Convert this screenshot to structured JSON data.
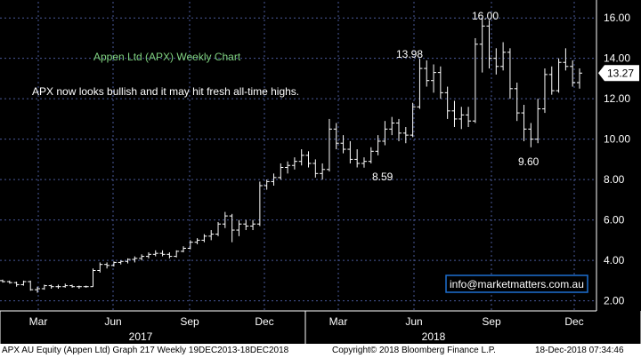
{
  "chart_data": {
    "type": "bar",
    "subtype": "ohlc-weekly",
    "title": "Appen Ltd (APX) Weekly Chart",
    "subtitle": "APX now looks bullish and it may hit fresh all-time highs.",
    "email": "info@marketmatters.com.au",
    "last_price": "13.27",
    "ylim": [
      1.5,
      16.8
    ],
    "y_ticks": [
      "2.00",
      "4.00",
      "6.00",
      "8.00",
      "10.00",
      "12.00",
      "14.00",
      "16.00"
    ],
    "x_month_labels": [
      "Mar",
      "Jun",
      "Sep",
      "Dec",
      "Mar",
      "Jun",
      "Sep",
      "Dec"
    ],
    "x_year_labels": [
      "2017",
      "2018"
    ],
    "annotations": [
      {
        "text": "13.98",
        "value": 13.98
      },
      {
        "text": "16.00",
        "value": 16.0
      },
      {
        "text": "8.59",
        "value": 8.59
      },
      {
        "text": "9.60",
        "value": 9.6
      }
    ],
    "colors": {
      "background": "#000000",
      "bars": "#ffffff",
      "grid": "#4a5a9a",
      "title": "#7fd17f",
      "email_box": "#1e6fd0"
    },
    "grid": true,
    "series": [
      {
        "values": [
          [
            3.0,
            3.05,
            2.9,
            2.95
          ],
          [
            2.95,
            3.0,
            2.85,
            2.9
          ],
          [
            2.9,
            2.95,
            2.7,
            2.8
          ],
          [
            2.8,
            3.0,
            2.75,
            2.95
          ],
          [
            2.95,
            3.0,
            2.5,
            2.55
          ],
          [
            2.55,
            2.7,
            2.4,
            2.6
          ],
          [
            2.6,
            2.8,
            2.55,
            2.75
          ],
          [
            2.75,
            2.8,
            2.6,
            2.7
          ],
          [
            2.7,
            2.8,
            2.6,
            2.7
          ],
          [
            2.7,
            2.85,
            2.65,
            2.75
          ],
          [
            2.75,
            2.8,
            2.65,
            2.7
          ],
          [
            2.7,
            2.75,
            2.6,
            2.7
          ],
          [
            2.7,
            2.75,
            2.65,
            2.7
          ],
          [
            2.7,
            3.6,
            2.7,
            3.5
          ],
          [
            3.5,
            3.9,
            3.4,
            3.8
          ],
          [
            3.8,
            3.9,
            3.6,
            3.75
          ],
          [
            3.75,
            3.95,
            3.7,
            3.9
          ],
          [
            3.9,
            4.0,
            3.8,
            3.95
          ],
          [
            3.95,
            4.1,
            3.85,
            4.05
          ],
          [
            4.05,
            4.2,
            3.9,
            4.1
          ],
          [
            4.1,
            4.3,
            4.0,
            4.2
          ],
          [
            4.2,
            4.4,
            4.1,
            4.3
          ],
          [
            4.3,
            4.5,
            4.2,
            4.35
          ],
          [
            4.35,
            4.5,
            4.2,
            4.3
          ],
          [
            4.3,
            4.4,
            4.1,
            4.2
          ],
          [
            4.2,
            4.5,
            4.15,
            4.45
          ],
          [
            4.45,
            4.7,
            4.4,
            4.6
          ],
          [
            4.6,
            5.0,
            4.55,
            4.9
          ],
          [
            4.9,
            5.1,
            4.8,
            5.0
          ],
          [
            5.0,
            5.3,
            4.9,
            5.2
          ],
          [
            5.2,
            5.5,
            5.0,
            5.3
          ],
          [
            5.3,
            5.9,
            5.2,
            5.8
          ],
          [
            5.8,
            6.4,
            5.6,
            6.2
          ],
          [
            6.2,
            6.3,
            4.9,
            5.5
          ],
          [
            5.5,
            6.0,
            5.2,
            5.8
          ],
          [
            5.8,
            6.0,
            5.5,
            5.7
          ],
          [
            5.7,
            6.0,
            5.5,
            5.8
          ],
          [
            5.8,
            7.9,
            5.7,
            7.7
          ],
          [
            7.7,
            8.0,
            7.5,
            7.9
          ],
          [
            7.9,
            8.3,
            7.7,
            8.1
          ],
          [
            8.1,
            8.8,
            8.0,
            8.6
          ],
          [
            8.6,
            8.9,
            8.3,
            8.7
          ],
          [
            8.7,
            9.1,
            8.5,
            8.9
          ],
          [
            8.9,
            9.5,
            8.7,
            9.2
          ],
          [
            9.2,
            9.4,
            8.6,
            8.8
          ],
          [
            8.8,
            9.0,
            8.1,
            8.3
          ],
          [
            8.3,
            8.8,
            8.0,
            8.5
          ],
          [
            8.5,
            11.0,
            8.4,
            10.5
          ],
          [
            10.5,
            10.8,
            9.5,
            9.8
          ],
          [
            9.8,
            10.2,
            9.3,
            9.5
          ],
          [
            9.5,
            9.9,
            8.8,
            9.0
          ],
          [
            9.0,
            9.5,
            8.6,
            8.8
          ],
          [
            8.8,
            9.1,
            8.59,
            8.9
          ],
          [
            8.9,
            9.6,
            8.8,
            9.4
          ],
          [
            9.4,
            10.2,
            9.2,
            9.9
          ],
          [
            9.9,
            10.9,
            9.7,
            10.5
          ],
          [
            10.5,
            11.1,
            10.2,
            10.8
          ],
          [
            10.8,
            11.0,
            9.9,
            10.3
          ],
          [
            10.3,
            10.6,
            9.8,
            10.2
          ],
          [
            10.2,
            11.8,
            10.1,
            11.6
          ],
          [
            11.6,
            13.98,
            11.5,
            13.5
          ],
          [
            13.5,
            13.9,
            12.6,
            12.9
          ],
          [
            12.9,
            13.7,
            12.3,
            13.3
          ],
          [
            13.3,
            13.6,
            12.0,
            12.3
          ],
          [
            12.3,
            12.6,
            11.0,
            11.4
          ],
          [
            11.4,
            11.9,
            10.6,
            11.0
          ],
          [
            11.0,
            11.6,
            10.5,
            11.2
          ],
          [
            11.2,
            11.6,
            10.6,
            10.9
          ],
          [
            10.9,
            15.0,
            10.8,
            14.7
          ],
          [
            14.7,
            16.0,
            13.3,
            15.6
          ],
          [
            15.6,
            15.9,
            13.5,
            14.0
          ],
          [
            14.0,
            14.5,
            13.2,
            13.6
          ],
          [
            13.6,
            14.8,
            13.4,
            14.3
          ],
          [
            14.3,
            14.5,
            12.0,
            12.5
          ],
          [
            12.5,
            12.8,
            10.9,
            11.3
          ],
          [
            11.3,
            11.7,
            9.9,
            10.5
          ],
          [
            10.5,
            10.8,
            9.6,
            10.0
          ],
          [
            10.0,
            12.0,
            9.8,
            11.5
          ],
          [
            11.5,
            13.5,
            11.3,
            13.2
          ],
          [
            13.2,
            13.6,
            12.2,
            12.4
          ],
          [
            12.4,
            14.0,
            12.3,
            13.8
          ],
          [
            13.8,
            14.5,
            13.4,
            13.6
          ],
          [
            13.6,
            13.9,
            12.6,
            12.8
          ],
          [
            12.8,
            13.5,
            12.5,
            13.27
          ]
        ]
      }
    ]
  },
  "footer": {
    "left": "APX AU Equity (Appen Ltd) Graph 217  Weekly 19DEC2013-18DEC2018",
    "mid": "Copyright© 2018 Bloomberg Finance L.P.",
    "right": "18-Dec-2018 07:34:46"
  }
}
